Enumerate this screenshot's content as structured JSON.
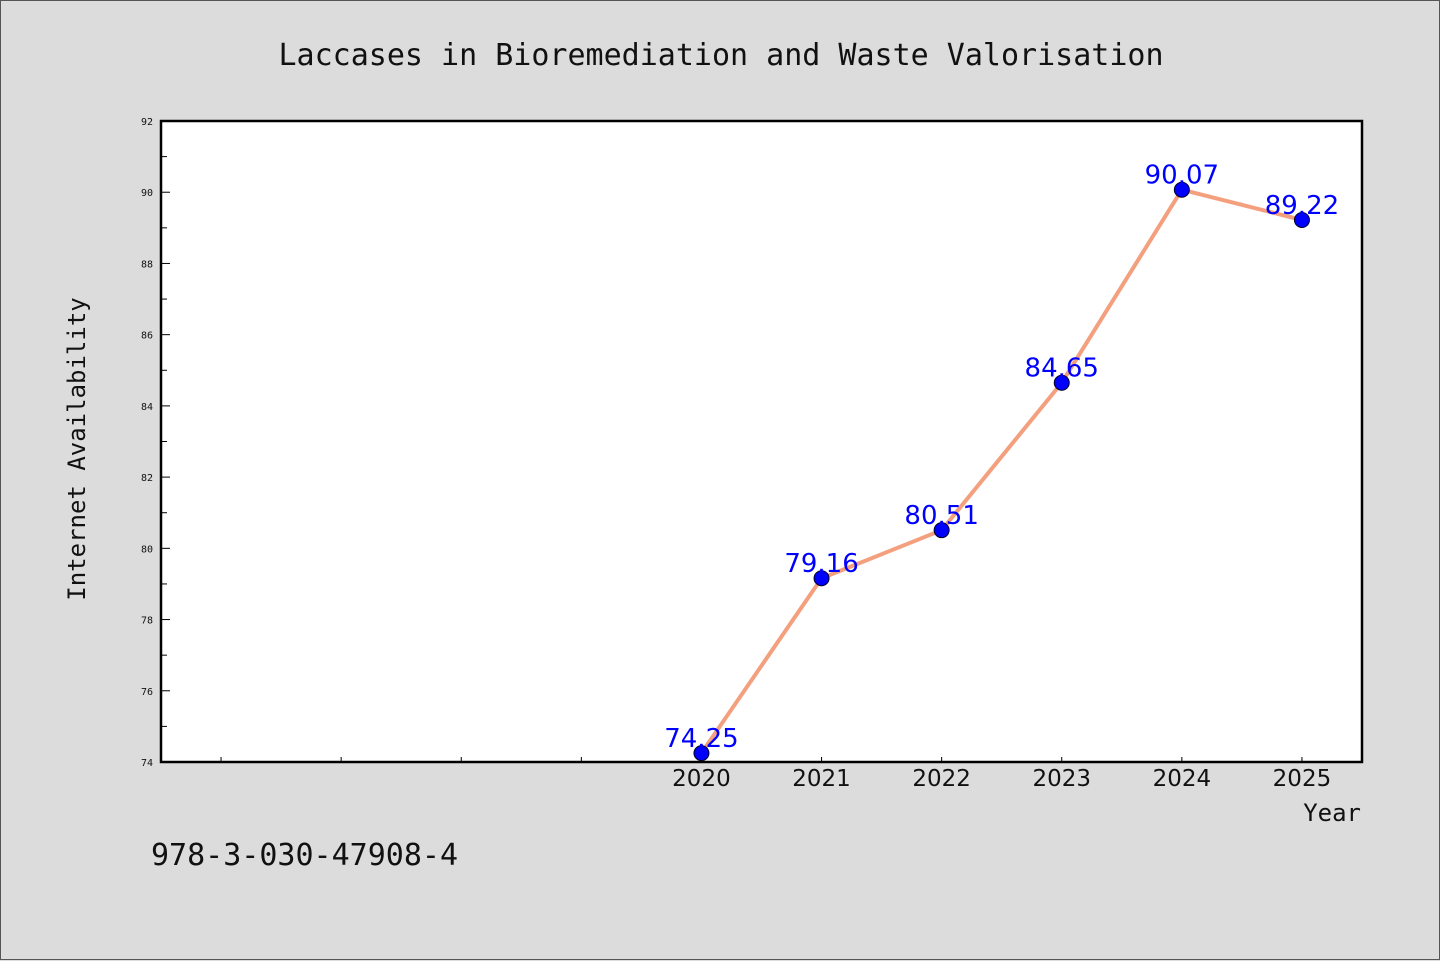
{
  "chart_data": {
    "type": "line",
    "title": "Laccases in Bioremediation and Waste Valorisation",
    "xlabel": "Year",
    "ylabel": "Internet Availability",
    "x": [
      2020,
      2021,
      2022,
      2023,
      2024,
      2025
    ],
    "x_tick_labels": [
      "2020",
      "2021",
      "2022",
      "2023",
      "2024",
      "2025"
    ],
    "xlim": [
      2015.5,
      2025.5
    ],
    "ylim": [
      74,
      92
    ],
    "y_ticks": [
      74,
      76,
      78,
      80,
      82,
      84,
      86,
      88,
      90,
      92
    ],
    "y_tick_labels": [
      "74",
      "76",
      "78",
      "80",
      "82",
      "84",
      "86",
      "88",
      "90",
      "92"
    ],
    "series": [
      {
        "values": [
          74.25,
          79.16,
          80.51,
          84.65,
          90.07,
          89.22
        ],
        "labels": [
          "74.25",
          "79.16",
          "80.51",
          "84.65",
          "90.07",
          "89.22"
        ],
        "line_color": "#f4a07e",
        "marker_color": "#0000ff"
      }
    ],
    "grid": false,
    "legend": "none"
  },
  "footer": {
    "isbn": "978-3-030-47908-4"
  }
}
